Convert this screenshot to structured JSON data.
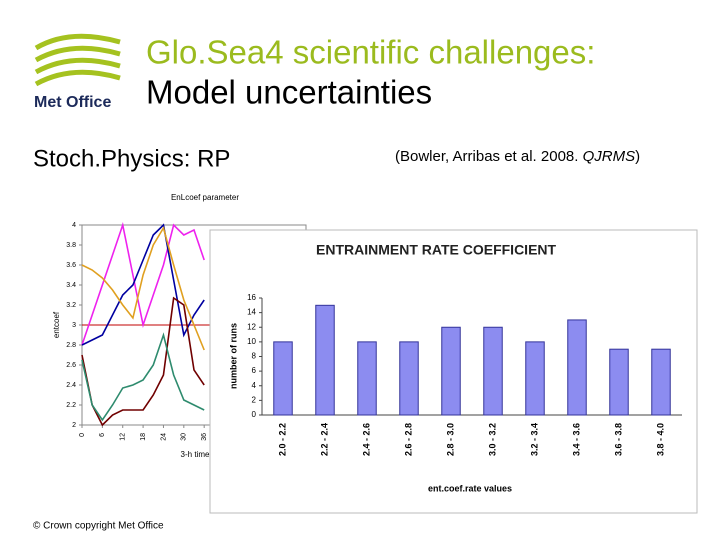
{
  "header": {
    "title_line1": "Glo.Sea4 scientific challenges:",
    "title_line2": "Model uncertainties",
    "logo_text": "Met Office"
  },
  "subtitle": "Stoch.Physics: RP",
  "citation": {
    "authors": "(Bowler, Arribas et al. 2008.",
    "journal": "QJRMS",
    "close": ")"
  },
  "footer": "© Crown copyright   Met Office",
  "chart_data": [
    {
      "type": "line",
      "title": "EnLcoef parameter",
      "y_label": "entcoef",
      "x_label": "3-h time",
      "x": [
        0,
        3,
        6,
        9,
        12,
        15,
        18,
        21,
        24,
        27,
        30,
        33,
        36
      ],
      "xlim": [
        0,
        66
      ],
      "xticks": [
        0,
        6,
        12,
        18,
        24,
        30,
        36
      ],
      "ylim": [
        2,
        4
      ],
      "yticks": [
        2,
        2.2,
        2.4,
        2.6,
        2.8,
        3,
        3.2,
        3.4,
        3.6,
        3.8,
        4
      ],
      "reference_line": {
        "value": 3,
        "color": "#c00000"
      },
      "series": [
        {
          "color": "#ee22ee",
          "values": [
            2.8,
            3.1,
            3.4,
            3.7,
            4.0,
            3.5,
            3.0,
            3.3,
            3.6,
            4.0,
            3.9,
            3.95,
            3.65
          ]
        },
        {
          "color": "#0000a0",
          "values": [
            2.8,
            2.85,
            2.9,
            3.1,
            3.3,
            3.4,
            3.65,
            3.9,
            4.0,
            3.45,
            2.9,
            3.1,
            3.25
          ]
        },
        {
          "color": "#e0a020",
          "values": [
            3.6,
            3.55,
            3.47,
            3.35,
            3.2,
            3.07,
            3.5,
            3.8,
            3.97,
            3.6,
            3.25,
            3.0,
            2.75
          ]
        },
        {
          "color": "#700000",
          "values": [
            2.7,
            2.2,
            2.0,
            2.1,
            2.15,
            2.15,
            2.15,
            2.3,
            2.5,
            3.27,
            3.2,
            2.55,
            2.4
          ]
        },
        {
          "color": "#2e8b6e",
          "values": [
            2.65,
            2.2,
            2.05,
            2.2,
            2.37,
            2.4,
            2.45,
            2.6,
            2.9,
            2.5,
            2.25,
            2.2,
            2.15
          ]
        }
      ]
    },
    {
      "type": "bar",
      "title": "ENTRAINMENT RATE COEFFICIENT",
      "x_label": "ent.coef.rate values",
      "y_label": "number of runs",
      "categories": [
        "2.0 - 2.2",
        "2.2 - 2.4",
        "2.4 - 2.6",
        "2.6 - 2.8",
        "2.8 - 3.0",
        "3.0 - 3.2",
        "3.2 - 3.4",
        "3.4 - 3.6",
        "3.6 - 3.8",
        "3.8 - 4.0"
      ],
      "values": [
        10,
        15,
        10,
        10,
        12,
        12,
        10,
        13,
        9,
        9
      ],
      "color": "#8c8cf0",
      "ylim": [
        0,
        16
      ],
      "yticks": [
        0,
        2,
        4,
        6,
        8,
        10,
        12,
        14,
        16
      ]
    }
  ]
}
